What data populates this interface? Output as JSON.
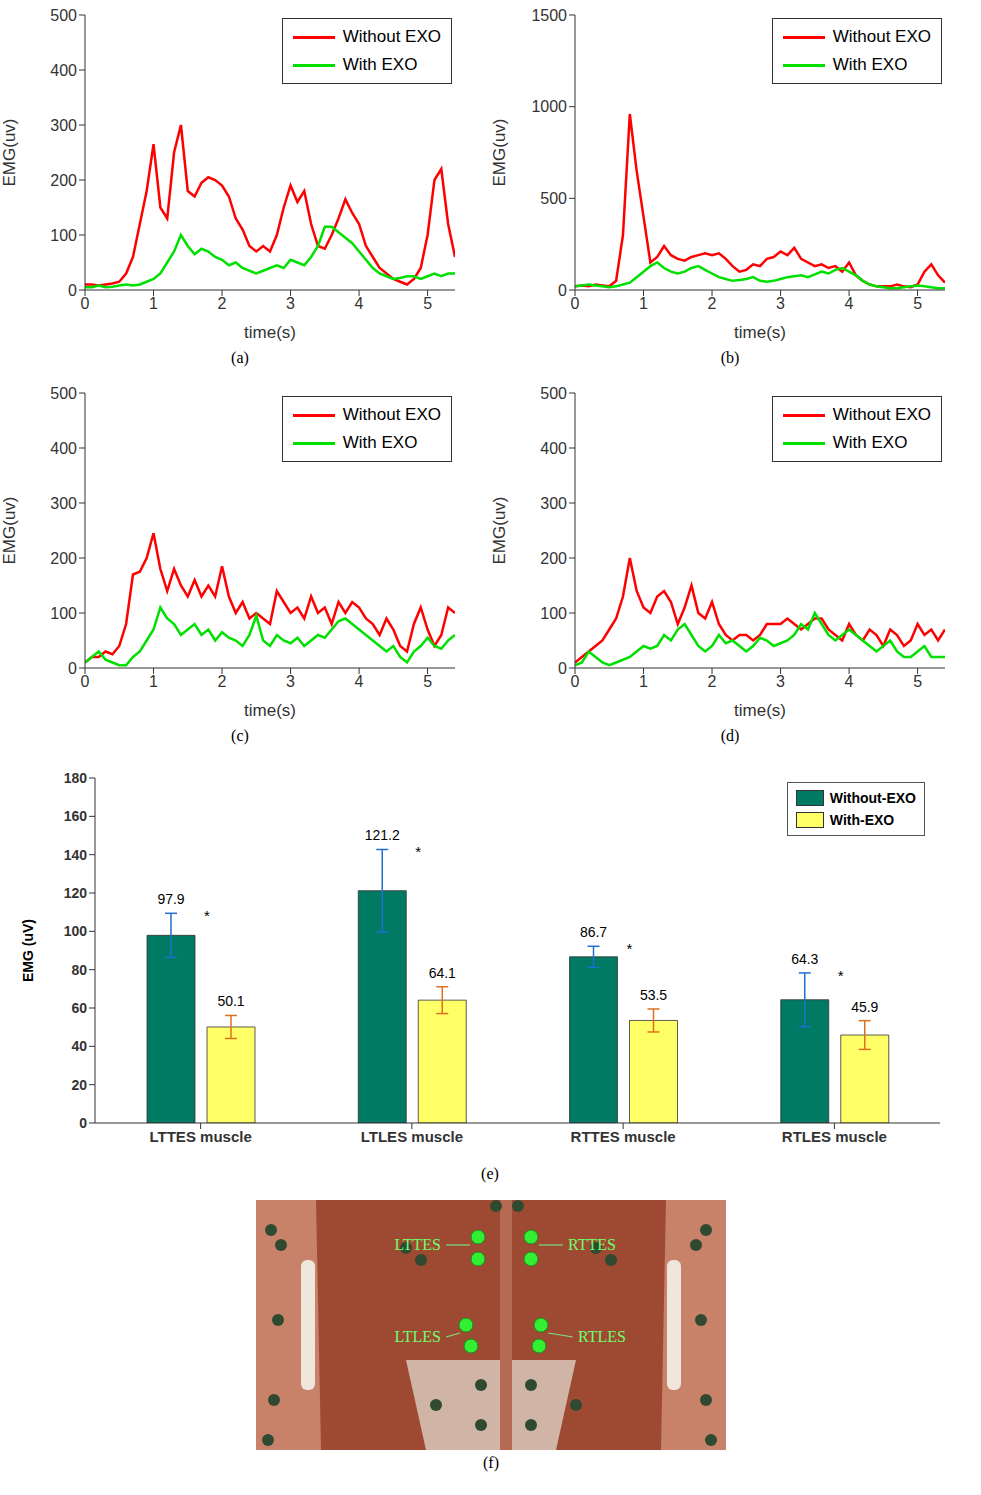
{
  "chart_data": [
    {
      "type": "line",
      "title": "(a)",
      "xlabel": "time(s)",
      "ylabel": "EMG(uv)",
      "legend": "upper right",
      "x": [
        0,
        0.1,
        0.2,
        0.3,
        0.4,
        0.5,
        0.6,
        0.7,
        0.8,
        0.9,
        1,
        1.1,
        1.2,
        1.3,
        1.4,
        1.5,
        1.6,
        1.7,
        1.8,
        1.9,
        2,
        2.1,
        2.2,
        2.3,
        2.4,
        2.5,
        2.6,
        2.7,
        2.8,
        2.9,
        3,
        3.1,
        3.2,
        3.3,
        3.4,
        3.5,
        3.6,
        3.7,
        3.8,
        3.9,
        4,
        4.1,
        4.2,
        4.3,
        4.4,
        4.5,
        4.6,
        4.7,
        4.8,
        4.9,
        5,
        5.1,
        5.2,
        5.3,
        5.4
      ],
      "xlim": [
        0,
        5.4
      ],
      "xticks": [
        0,
        1,
        2,
        3,
        4,
        5
      ],
      "ylim": [
        0,
        500
      ],
      "yticks": [
        0,
        100,
        200,
        300,
        400,
        500
      ],
      "series": [
        {
          "name": "Without EXO",
          "color": "#ff0000",
          "values": [
            10,
            10,
            8,
            10,
            12,
            15,
            30,
            60,
            120,
            180,
            265,
            150,
            130,
            250,
            300,
            180,
            170,
            195,
            205,
            200,
            190,
            170,
            130,
            110,
            80,
            70,
            80,
            70,
            100,
            150,
            190,
            160,
            180,
            120,
            80,
            75,
            100,
            130,
            165,
            140,
            120,
            80,
            60,
            40,
            30,
            20,
            15,
            10,
            20,
            40,
            100,
            200,
            220,
            120,
            60
          ]
        },
        {
          "name": "With EXO",
          "color": "#00e000",
          "values": [
            5,
            5,
            8,
            5,
            6,
            8,
            10,
            8,
            10,
            15,
            20,
            30,
            50,
            70,
            100,
            80,
            65,
            75,
            70,
            60,
            55,
            45,
            50,
            40,
            35,
            30,
            35,
            40,
            45,
            40,
            55,
            50,
            45,
            60,
            80,
            115,
            115,
            105,
            95,
            85,
            70,
            55,
            40,
            30,
            25,
            20,
            22,
            25,
            25,
            20,
            25,
            30,
            25,
            30,
            30
          ]
        }
      ]
    },
    {
      "type": "line",
      "title": "(b)",
      "xlabel": "time(s)",
      "ylabel": "EMG(uv)",
      "legend": "upper right",
      "x": [
        0,
        0.1,
        0.2,
        0.3,
        0.4,
        0.5,
        0.6,
        0.7,
        0.8,
        0.9,
        1,
        1.1,
        1.2,
        1.3,
        1.4,
        1.5,
        1.6,
        1.7,
        1.8,
        1.9,
        2,
        2.1,
        2.2,
        2.3,
        2.4,
        2.5,
        2.6,
        2.7,
        2.8,
        2.9,
        3,
        3.1,
        3.2,
        3.3,
        3.4,
        3.5,
        3.6,
        3.7,
        3.8,
        3.9,
        4,
        4.1,
        4.2,
        4.3,
        4.4,
        4.5,
        4.6,
        4.7,
        4.8,
        4.9,
        5,
        5.1,
        5.2,
        5.3,
        5.4
      ],
      "xlim": [
        0,
        5.4
      ],
      "xticks": [
        0,
        1,
        2,
        3,
        4,
        5
      ],
      "ylim": [
        0,
        1500
      ],
      "yticks": [
        0,
        500,
        1000,
        1500
      ],
      "series": [
        {
          "name": "Without EXO",
          "color": "#ff0000",
          "values": [
            20,
            25,
            20,
            30,
            25,
            20,
            50,
            300,
            960,
            650,
            400,
            150,
            180,
            240,
            190,
            170,
            160,
            180,
            190,
            200,
            190,
            200,
            170,
            130,
            100,
            110,
            140,
            130,
            170,
            180,
            210,
            190,
            230,
            170,
            150,
            130,
            140,
            120,
            130,
            100,
            150,
            80,
            50,
            30,
            20,
            20,
            20,
            30,
            20,
            15,
            30,
            100,
            140,
            80,
            40
          ]
        },
        {
          "name": "With EXO",
          "color": "#00e000",
          "values": [
            20,
            25,
            30,
            25,
            20,
            15,
            20,
            30,
            40,
            70,
            100,
            130,
            150,
            120,
            100,
            90,
            100,
            120,
            130,
            110,
            90,
            70,
            60,
            50,
            55,
            60,
            70,
            50,
            45,
            50,
            60,
            70,
            75,
            80,
            70,
            85,
            100,
            90,
            110,
            120,
            100,
            80,
            50,
            30,
            20,
            15,
            10,
            10,
            15,
            20,
            25,
            20,
            15,
            10,
            10
          ]
        }
      ]
    },
    {
      "type": "line",
      "title": "(c)",
      "xlabel": "time(s)",
      "ylabel": "EMG(uv)",
      "legend": "upper right",
      "x": [
        0,
        0.1,
        0.2,
        0.3,
        0.4,
        0.5,
        0.6,
        0.7,
        0.8,
        0.9,
        1,
        1.1,
        1.2,
        1.3,
        1.4,
        1.5,
        1.6,
        1.7,
        1.8,
        1.9,
        2,
        2.1,
        2.2,
        2.3,
        2.4,
        2.5,
        2.6,
        2.7,
        2.8,
        2.9,
        3,
        3.1,
        3.2,
        3.3,
        3.4,
        3.5,
        3.6,
        3.7,
        3.8,
        3.9,
        4,
        4.1,
        4.2,
        4.3,
        4.4,
        4.5,
        4.6,
        4.7,
        4.8,
        4.9,
        5,
        5.1,
        5.2,
        5.3,
        5.4
      ],
      "xlim": [
        0,
        5.4
      ],
      "xticks": [
        0,
        1,
        2,
        3,
        4,
        5
      ],
      "ylim": [
        0,
        500
      ],
      "yticks": [
        0,
        100,
        200,
        300,
        400,
        500
      ],
      "series": [
        {
          "name": "Without EXO",
          "color": "#ff0000",
          "values": [
            10,
            20,
            20,
            30,
            25,
            40,
            80,
            170,
            175,
            200,
            245,
            180,
            140,
            180,
            150,
            130,
            160,
            130,
            150,
            130,
            185,
            130,
            100,
            120,
            90,
            100,
            90,
            80,
            140,
            120,
            100,
            110,
            90,
            130,
            100,
            110,
            80,
            120,
            100,
            120,
            110,
            90,
            80,
            60,
            90,
            70,
            40,
            30,
            80,
            110,
            70,
            40,
            60,
            110,
            100
          ]
        },
        {
          "name": "With EXO",
          "color": "#00e000",
          "values": [
            10,
            20,
            30,
            15,
            10,
            5,
            5,
            20,
            30,
            50,
            70,
            110,
            90,
            80,
            60,
            70,
            80,
            60,
            70,
            50,
            65,
            55,
            50,
            40,
            60,
            95,
            50,
            40,
            60,
            50,
            45,
            55,
            40,
            50,
            60,
            55,
            70,
            85,
            90,
            80,
            70,
            60,
            50,
            40,
            30,
            40,
            20,
            10,
            30,
            40,
            55,
            40,
            35,
            50,
            60
          ]
        }
      ]
    },
    {
      "type": "line",
      "title": "(d)",
      "xlabel": "time(s)",
      "ylabel": "EMG(uv)",
      "legend": "upper right",
      "x": [
        0,
        0.1,
        0.2,
        0.3,
        0.4,
        0.5,
        0.6,
        0.7,
        0.8,
        0.9,
        1,
        1.1,
        1.2,
        1.3,
        1.4,
        1.5,
        1.6,
        1.7,
        1.8,
        1.9,
        2,
        2.1,
        2.2,
        2.3,
        2.4,
        2.5,
        2.6,
        2.7,
        2.8,
        2.9,
        3,
        3.1,
        3.2,
        3.3,
        3.4,
        3.5,
        3.6,
        3.7,
        3.8,
        3.9,
        4,
        4.1,
        4.2,
        4.3,
        4.4,
        4.5,
        4.6,
        4.7,
        4.8,
        4.9,
        5,
        5.1,
        5.2,
        5.3,
        5.4
      ],
      "xlim": [
        0,
        5.4
      ],
      "xticks": [
        0,
        1,
        2,
        3,
        4,
        5
      ],
      "ylim": [
        0,
        500
      ],
      "yticks": [
        0,
        100,
        200,
        300,
        400,
        500
      ],
      "series": [
        {
          "name": "Without EXO",
          "color": "#ff0000",
          "values": [
            10,
            20,
            30,
            40,
            50,
            70,
            90,
            130,
            200,
            140,
            110,
            100,
            130,
            140,
            120,
            80,
            110,
            150,
            100,
            90,
            120,
            80,
            60,
            50,
            60,
            60,
            50,
            60,
            80,
            80,
            80,
            90,
            80,
            70,
            80,
            90,
            90,
            70,
            60,
            50,
            80,
            60,
            50,
            70,
            60,
            40,
            70,
            60,
            40,
            50,
            80,
            60,
            70,
            50,
            70
          ]
        },
        {
          "name": "With EXO",
          "color": "#00e000",
          "values": [
            5,
            10,
            30,
            20,
            10,
            5,
            10,
            15,
            20,
            30,
            40,
            35,
            40,
            60,
            50,
            70,
            80,
            60,
            40,
            30,
            40,
            60,
            45,
            50,
            40,
            30,
            40,
            55,
            50,
            40,
            45,
            50,
            60,
            80,
            70,
            100,
            80,
            60,
            50,
            60,
            70,
            60,
            50,
            40,
            30,
            40,
            50,
            30,
            20,
            20,
            30,
            40,
            20,
            20,
            20
          ]
        }
      ]
    },
    {
      "type": "bar",
      "title": "(e)",
      "ylabel": "EMG (uV)",
      "legend": "upper right",
      "data_labels": true,
      "categories": [
        "LTTES muscle",
        "LTLES muscle",
        "RTTES muscle",
        "RTLES muscle"
      ],
      "annotations": [
        "*",
        "*",
        "*",
        "*"
      ],
      "ylim": [
        0,
        180
      ],
      "yticks": [
        0,
        20,
        40,
        60,
        80,
        100,
        120,
        140,
        160,
        180
      ],
      "series": [
        {
          "name": "Without-EXO",
          "color": "#007a63",
          "values": [
            97.9,
            121.2,
            86.7,
            64.3
          ],
          "errors": [
            11.5,
            21.5,
            5.5,
            14
          ]
        },
        {
          "name": "With-EXO",
          "color": "#ffff66",
          "values": [
            50.1,
            64.1,
            53.5,
            45.9
          ],
          "errors": [
            6,
            7,
            6,
            7.5
          ]
        }
      ]
    }
  ],
  "diagram": {
    "title": "(f)",
    "labels": [
      "LTTES",
      "RTTES",
      "LTLES",
      "RTLES"
    ]
  }
}
